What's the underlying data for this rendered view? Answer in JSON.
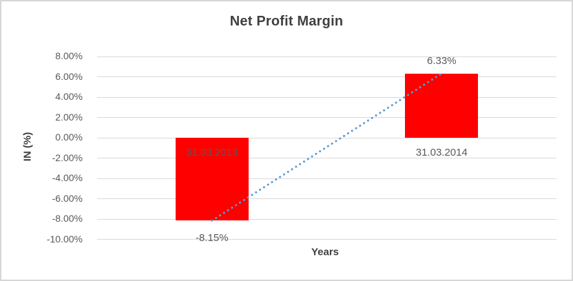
{
  "chart_data": {
    "type": "bar",
    "title": "Net Profit Margin",
    "xlabel": "Years",
    "ylabel": "IN (%)",
    "categories": [
      "31.03.2013",
      "31.03.2014"
    ],
    "values": [
      -8.15,
      6.33
    ],
    "value_labels": [
      "-8.15%",
      "6.33%"
    ],
    "ylim": [
      -10,
      8
    ],
    "yticks": [
      {
        "value": 8,
        "label": "8.00%"
      },
      {
        "value": 6,
        "label": "6.00%"
      },
      {
        "value": 4,
        "label": "4.00%"
      },
      {
        "value": 2,
        "label": "2.00%"
      },
      {
        "value": 0,
        "label": "0.00%"
      },
      {
        "value": -2,
        "label": "-2.00%"
      },
      {
        "value": -4,
        "label": "-4.00%"
      },
      {
        "value": -6,
        "label": "-6.00%"
      },
      {
        "value": -8,
        "label": "-8.00%"
      },
      {
        "value": -10,
        "label": "-10.00%"
      }
    ],
    "grid": true,
    "legend": "none",
    "trendline": {
      "style": "dotted",
      "connects": [
        -8.15,
        6.33
      ]
    },
    "colors": {
      "bar": "#ff0000",
      "trendline": "#5b9bd5",
      "title": "#404040",
      "axis_title": "#404040",
      "axis_text": "#595959",
      "data_label": "#595959",
      "gridline": "#d9d9d9",
      "border": "#d6d6d6",
      "background": "#ffffff"
    }
  }
}
